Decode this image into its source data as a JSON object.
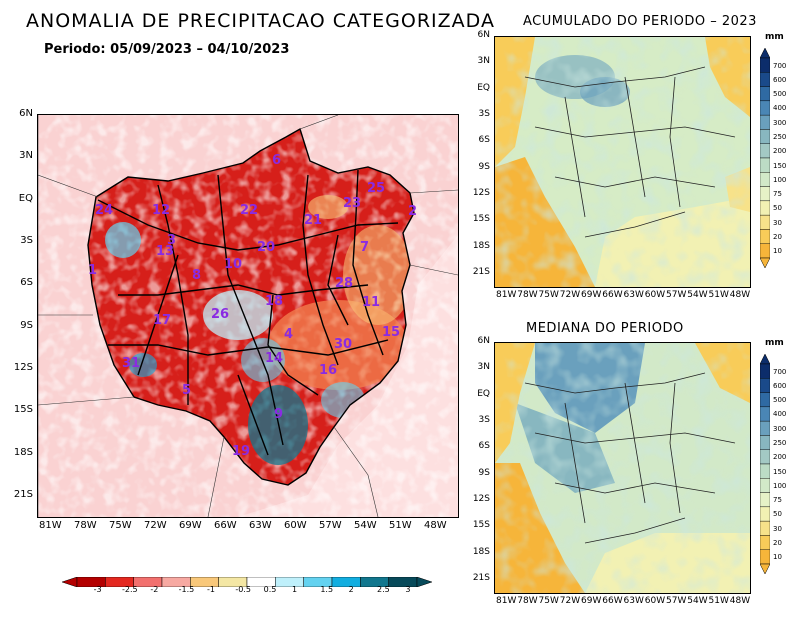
{
  "main": {
    "title": "ANOMALIA DE PRECIPITACAO CATEGORIZADA",
    "period": "Periodo: 05/09/2023 – 04/10/2023",
    "lat_ticks": [
      "6N",
      "3N",
      "EQ",
      "3S",
      "6S",
      "9S",
      "12S",
      "15S",
      "18S",
      "21S"
    ],
    "lon_ticks": [
      "81W",
      "78W",
      "75W",
      "72W",
      "69W",
      "66W",
      "63W",
      "60W",
      "57W",
      "54W",
      "51W",
      "48W"
    ],
    "basin_labels": [
      {
        "id": "6"
      },
      {
        "id": "24"
      },
      {
        "id": "12"
      },
      {
        "id": "22"
      },
      {
        "id": "21"
      },
      {
        "id": "23"
      },
      {
        "id": "25"
      },
      {
        "id": "2"
      },
      {
        "id": "3"
      },
      {
        "id": "20"
      },
      {
        "id": "13"
      },
      {
        "id": "7"
      },
      {
        "id": "1"
      },
      {
        "id": "10"
      },
      {
        "id": "8"
      },
      {
        "id": "28"
      },
      {
        "id": "11"
      },
      {
        "id": "18"
      },
      {
        "id": "26"
      },
      {
        "id": "17"
      },
      {
        "id": "4"
      },
      {
        "id": "15"
      },
      {
        "id": "30"
      },
      {
        "id": "31"
      },
      {
        "id": "14"
      },
      {
        "id": "16"
      },
      {
        "id": "5"
      },
      {
        "id": "9"
      },
      {
        "id": "19"
      }
    ],
    "colorbar": {
      "labels": [
        "-3",
        "-2.5",
        "-2",
        "-1.5",
        "-1",
        "-0.5",
        "0.5",
        "1",
        "1.5",
        "2",
        "2.5",
        "3"
      ],
      "colors": [
        "#b40000",
        "#e42820",
        "#f2706e",
        "#f7a9a2",
        "#f9c87a",
        "#f4e7a4",
        "#ffffff",
        "#bff0fb",
        "#63d2f0",
        "#12aee0",
        "#11778e",
        "#074a5a"
      ]
    }
  },
  "accum": {
    "title": "ACUMULADO DO PERIODO – 2023",
    "lat_ticks": [
      "6N",
      "3N",
      "EQ",
      "3S",
      "6S",
      "9S",
      "12S",
      "15S",
      "18S",
      "21S"
    ],
    "lon_ticks": [
      "81W",
      "78W",
      "75W",
      "72W",
      "69W",
      "66W",
      "63W",
      "60W",
      "57W",
      "54W",
      "51W",
      "48W"
    ],
    "unit": "mm"
  },
  "median": {
    "title": "MEDIANA DO PERIODO",
    "lat_ticks": [
      "6N",
      "3N",
      "EQ",
      "3S",
      "6S",
      "9S",
      "12S",
      "15S",
      "18S",
      "21S"
    ],
    "lon_ticks": [
      "81W",
      "78W",
      "75W",
      "72W",
      "69W",
      "66W",
      "63W",
      "60W",
      "57W",
      "54W",
      "51W",
      "48W"
    ],
    "unit": "mm"
  },
  "mm_scale": {
    "labels": [
      "700",
      "600",
      "500",
      "400",
      "300",
      "250",
      "200",
      "150",
      "100",
      "75",
      "50",
      "30",
      "20",
      "10"
    ],
    "colors": [
      "#0c2d6b",
      "#1a4a8a",
      "#2f6aa3",
      "#4a86b5",
      "#6aa0bd",
      "#88b7c0",
      "#a3c9c4",
      "#bcdcc5",
      "#d2e9c8",
      "#e6f2c7",
      "#f2f1b3",
      "#f7e28a",
      "#f8cc59",
      "#f6b53a"
    ]
  }
}
